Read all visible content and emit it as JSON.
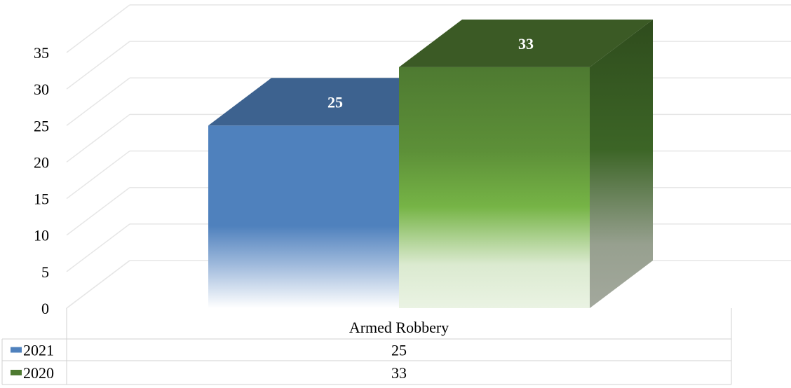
{
  "chart_data": {
    "type": "bar",
    "style": "3d-column-with-data-table",
    "categories": [
      "Armed Robbery"
    ],
    "series": [
      {
        "name": "2021",
        "values": [
          25
        ],
        "color": "#4f81bd",
        "top_color": "#3d628f"
      },
      {
        "name": "2020",
        "values": [
          33
        ],
        "color": "#4e7a31",
        "top_color": "#3b5a25",
        "side_color": "#2f4c1d"
      }
    ],
    "ylim": [
      0,
      35
    ],
    "yticks": [
      0,
      5,
      10,
      15,
      20,
      25,
      30,
      35
    ],
    "grid": true,
    "data_labels": true,
    "legend": "data-table-left"
  }
}
